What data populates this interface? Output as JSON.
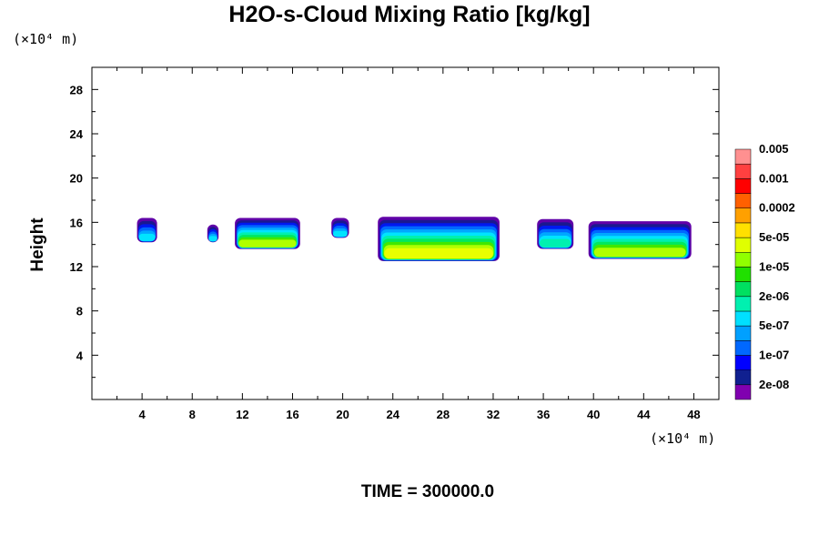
{
  "chart_data": {
    "type": "heatmap",
    "title": "H2O-s-Cloud Mixing Ratio [kg/kg]",
    "xlabel": "",
    "ylabel": "Height",
    "x_unit_label": "(×10⁴ m)",
    "y_unit_label": "(×10⁴ m)",
    "time_label": "TIME = 300000.0",
    "xlim": [
      0,
      50
    ],
    "ylim": [
      0,
      30
    ],
    "x_ticks": [
      4,
      8,
      12,
      16,
      20,
      24,
      28,
      32,
      36,
      40,
      44,
      48
    ],
    "y_ticks": [
      4,
      8,
      12,
      16,
      20,
      24,
      28
    ],
    "colorbar": {
      "colors": [
        "#8000b0",
        "#102090",
        "#0000ff",
        "#0068ff",
        "#00a0ff",
        "#00e0ff",
        "#00f0b0",
        "#00e060",
        "#20e000",
        "#90ff00",
        "#e0ff00",
        "#ffe000",
        "#ffa000",
        "#ff6000",
        "#ff0000",
        "#ff4040",
        "#ff9090"
      ],
      "labels": [
        "2e-08",
        "1e-07",
        "5e-07",
        "2e-06",
        "1e-05",
        "5e-05",
        "0.0002",
        "0.001",
        "0.005"
      ]
    },
    "cloud_layers": [
      {
        "x_range": [
          3.6,
          5.2
        ],
        "base": 14.2,
        "top": 16.4,
        "max_level": 5
      },
      {
        "x_range": [
          9.2,
          10.1
        ],
        "base": 14.2,
        "top": 15.8,
        "max_level": 5
      },
      {
        "x_range": [
          11.4,
          16.6
        ],
        "base": 13.6,
        "top": 16.4,
        "max_level": 9
      },
      {
        "x_range": [
          19.1,
          20.5
        ],
        "base": 14.6,
        "top": 16.4,
        "max_level": 5
      },
      {
        "x_range": [
          22.8,
          32.5
        ],
        "base": 12.5,
        "top": 16.5,
        "max_level": 10
      },
      {
        "x_range": [
          35.5,
          38.4
        ],
        "base": 13.6,
        "top": 16.3,
        "max_level": 6
      },
      {
        "x_range": [
          39.6,
          47.8
        ],
        "base": 12.7,
        "top": 16.1,
        "max_level": 9
      }
    ]
  }
}
